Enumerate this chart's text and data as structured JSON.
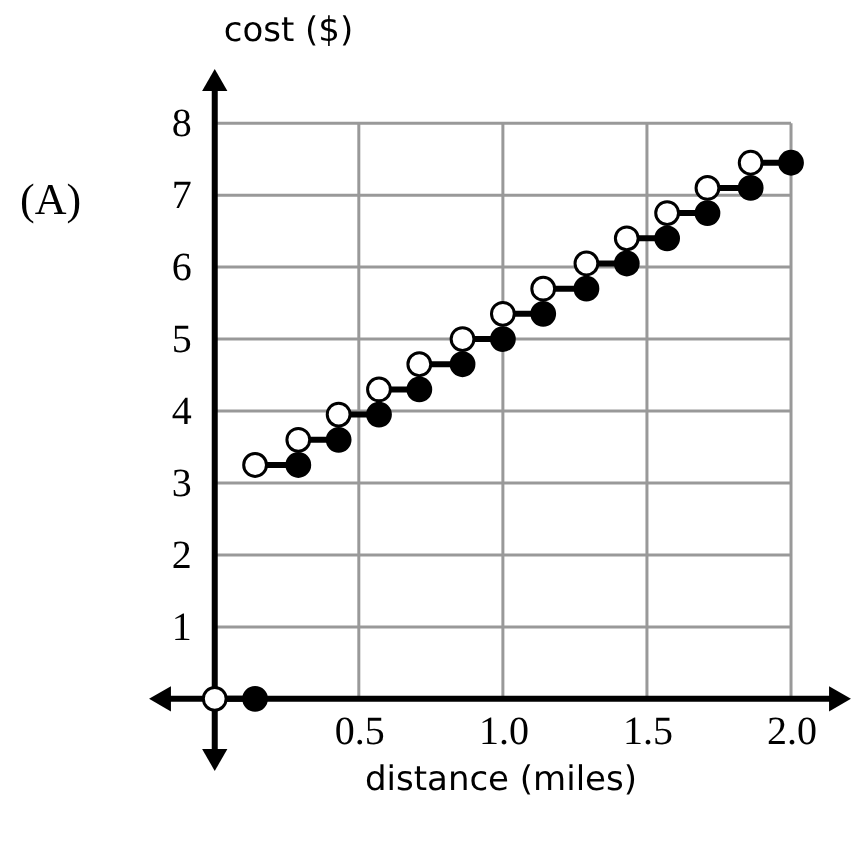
{
  "chart_data": {
    "type": "line",
    "xlabel": "distance (miles)",
    "ylabel": "cost ($)",
    "annotations": [
      "(A)"
    ],
    "xlim": [
      -0.19,
      2.17
    ],
    "ylim": [
      -0.85,
      8.6
    ],
    "xticks": [
      0.5,
      {
        "value": 1,
        "label": "1.0"
      },
      1.5,
      {
        "value": 2,
        "label": "2.0"
      }
    ],
    "yticks": [
      1,
      2,
      3,
      4,
      5,
      6,
      7,
      8
    ],
    "grid": true,
    "series": [
      {
        "color": "#000000",
        "x": [
          0,
          0.14
        ],
        "values": [
          0,
          0
        ]
      },
      {
        "color": "#000000",
        "x": [
          0.14,
          0.29
        ],
        "values": [
          3.25,
          3.25
        ]
      },
      {
        "color": "#000000",
        "x": [
          0.29,
          0.43
        ],
        "values": [
          3.6,
          3.6
        ]
      },
      {
        "color": "#000000",
        "x": [
          0.43,
          0.57
        ],
        "values": [
          3.95,
          3.95
        ]
      },
      {
        "color": "#000000",
        "x": [
          0.57,
          0.71
        ],
        "values": [
          4.3,
          4.3
        ]
      },
      {
        "color": "#000000",
        "x": [
          0.71,
          0.86
        ],
        "values": [
          4.65,
          4.65
        ]
      },
      {
        "color": "#000000",
        "x": [
          0.86,
          1.0
        ],
        "values": [
          5.0,
          5.0
        ]
      },
      {
        "color": "#000000",
        "x": [
          1.0,
          1.14
        ],
        "values": [
          5.35,
          5.35
        ]
      },
      {
        "color": "#000000",
        "x": [
          1.14,
          1.29
        ],
        "values": [
          5.7,
          5.7
        ]
      },
      {
        "color": "#000000",
        "x": [
          1.29,
          1.43
        ],
        "values": [
          6.05,
          6.05
        ]
      },
      {
        "color": "#000000",
        "x": [
          1.43,
          1.57
        ],
        "values": [
          6.4,
          6.4
        ]
      },
      {
        "color": "#000000",
        "x": [
          1.57,
          1.71
        ],
        "values": [
          6.75,
          6.75
        ]
      },
      {
        "color": "#000000",
        "x": [
          1.71,
          1.86
        ],
        "values": [
          7.1,
          7.1
        ]
      },
      {
        "color": "#000000",
        "x": [
          1.86,
          2.0
        ],
        "values": [
          7.45,
          7.45
        ]
      },
      {
        "type": "scatter",
        "marker": "circle",
        "color": "#ffffff",
        "x": [
          0,
          0.14,
          0.29,
          0.43,
          0.57,
          0.71,
          0.86,
          1.0,
          1.14,
          1.29,
          1.43,
          1.57,
          1.71,
          1.86
        ],
        "values": [
          0,
          3.25,
          3.6,
          3.95,
          4.3,
          4.65,
          5.0,
          5.35,
          5.7,
          6.05,
          6.4,
          6.75,
          7.1,
          7.45
        ]
      },
      {
        "type": "scatter",
        "marker": "circle",
        "color": "#000000",
        "x": [
          0.14,
          0.29,
          0.43,
          0.57,
          0.71,
          0.86,
          1.0,
          1.14,
          1.29,
          1.43,
          1.57,
          1.71,
          1.86,
          2.0
        ],
        "values": [
          0,
          3.25,
          3.6,
          3.95,
          4.3,
          4.65,
          5.0,
          5.35,
          5.7,
          6.05,
          6.4,
          6.75,
          7.1,
          7.45
        ]
      }
    ]
  }
}
